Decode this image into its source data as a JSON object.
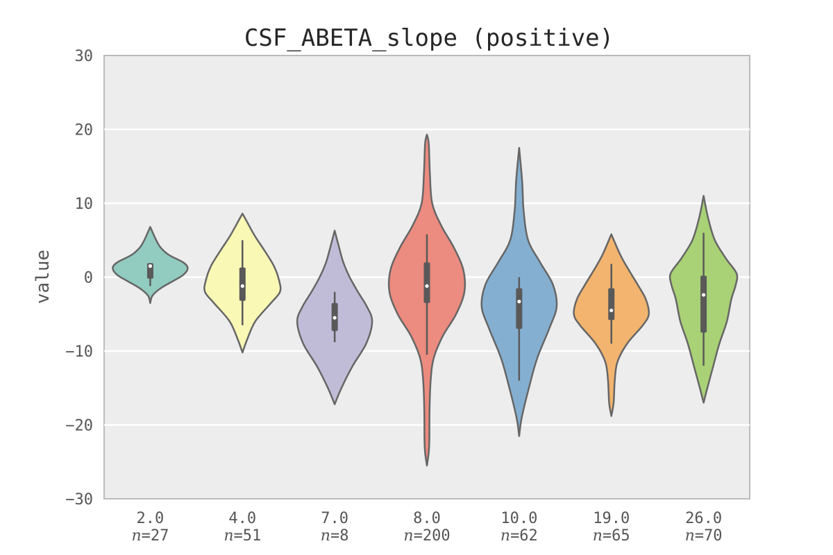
{
  "chart_data": {
    "type": "violin",
    "title": "CSF_ABETA_slope (positive)",
    "ylabel": "value",
    "xlabel": "",
    "ylim": [
      -30,
      30
    ],
    "yticks": [
      -30,
      -20,
      -10,
      0,
      10,
      20,
      30
    ],
    "ytick_labels": [
      "−30",
      "−20",
      "−10",
      "0",
      "10",
      "20",
      "30"
    ],
    "grid": true,
    "n_prefix": "n",
    "colors": {
      "background": "#ededed",
      "grid": "#ffffff",
      "outline": "#666666",
      "box": "#595959",
      "median": "#ffffff"
    },
    "groups": [
      {
        "category": "2.0",
        "n_label": "=27",
        "color": "#92cbc0",
        "min": -3.5,
        "max": 6.8,
        "q1": -0.2,
        "median": 1.5,
        "q3": 1.9,
        "whisker_low": -1.2,
        "whisker_high": 1.9,
        "profile": [
          [
            -3.5,
            0.0
          ],
          [
            -2.5,
            0.06
          ],
          [
            -1.5,
            0.28
          ],
          [
            -0.5,
            0.62
          ],
          [
            0.3,
            0.88
          ],
          [
            1.2,
            1.0
          ],
          [
            2.0,
            0.88
          ],
          [
            3.0,
            0.5
          ],
          [
            4.0,
            0.28
          ],
          [
            5.0,
            0.16
          ],
          [
            6.0,
            0.07
          ],
          [
            6.8,
            0.0
          ]
        ]
      },
      {
        "category": "4.0",
        "n_label": "=51",
        "color": "#f9f8b5",
        "min": -10.2,
        "max": 8.6,
        "q1": -3.2,
        "median": -1.2,
        "q3": 1.3,
        "whisker_low": -6.5,
        "whisker_high": 5.0,
        "profile": [
          [
            -10.2,
            0.0
          ],
          [
            -8.5,
            0.12
          ],
          [
            -6.0,
            0.34
          ],
          [
            -3.5,
            0.76
          ],
          [
            -2.0,
            1.0
          ],
          [
            -0.5,
            0.98
          ],
          [
            1.5,
            0.84
          ],
          [
            3.5,
            0.6
          ],
          [
            5.5,
            0.34
          ],
          [
            7.5,
            0.12
          ],
          [
            8.6,
            0.0
          ]
        ]
      },
      {
        "category": "7.0",
        "n_label": "=8",
        "color": "#c0bcd8",
        "min": -17.2,
        "max": 6.3,
        "q1": -7.3,
        "median": -5.5,
        "q3": -3.5,
        "whisker_low": -8.8,
        "whisker_high": -2.0,
        "profile": [
          [
            -17.2,
            0.0
          ],
          [
            -15.0,
            0.18
          ],
          [
            -12.0,
            0.48
          ],
          [
            -9.0,
            0.84
          ],
          [
            -6.0,
            1.0
          ],
          [
            -4.0,
            0.86
          ],
          [
            -2.0,
            0.62
          ],
          [
            0.0,
            0.4
          ],
          [
            2.0,
            0.23
          ],
          [
            4.0,
            0.12
          ],
          [
            6.3,
            0.0
          ]
        ]
      },
      {
        "category": "8.0",
        "n_label": "=200",
        "color": "#ec8b7f",
        "min": -25.5,
        "max": 19.3,
        "q1": -3.5,
        "median": -1.2,
        "q3": 2.0,
        "whisker_low": -10.5,
        "whisker_high": 5.8,
        "profile": [
          [
            -25.5,
            0.0
          ],
          [
            -23.0,
            0.06
          ],
          [
            -18.0,
            0.07
          ],
          [
            -14.0,
            0.1
          ],
          [
            -11.0,
            0.18
          ],
          [
            -8.0,
            0.42
          ],
          [
            -5.0,
            0.78
          ],
          [
            -2.0,
            1.0
          ],
          [
            1.0,
            0.97
          ],
          [
            4.0,
            0.72
          ],
          [
            7.0,
            0.38
          ],
          [
            10.0,
            0.14
          ],
          [
            14.0,
            0.08
          ],
          [
            18.0,
            0.05
          ],
          [
            19.3,
            0.0
          ]
        ]
      },
      {
        "category": "10.0",
        "n_label": "=62",
        "color": "#84afd1",
        "min": -21.5,
        "max": 17.5,
        "q1": -7.0,
        "median": -3.3,
        "q3": -1.5,
        "whisker_low": -14.0,
        "whisker_high": 0.0,
        "profile": [
          [
            -21.5,
            0.0
          ],
          [
            -19.0,
            0.07
          ],
          [
            -15.0,
            0.26
          ],
          [
            -11.0,
            0.48
          ],
          [
            -7.0,
            0.8
          ],
          [
            -4.0,
            1.0
          ],
          [
            -1.0,
            0.9
          ],
          [
            2.0,
            0.56
          ],
          [
            5.0,
            0.24
          ],
          [
            9.0,
            0.12
          ],
          [
            13.0,
            0.08
          ],
          [
            17.5,
            0.0
          ]
        ]
      },
      {
        "category": "19.0",
        "n_label": "=65",
        "color": "#f2b46e",
        "min": -18.8,
        "max": 5.8,
        "q1": -5.8,
        "median": -4.5,
        "q3": -1.5,
        "whisker_low": -9.0,
        "whisker_high": 1.8,
        "profile": [
          [
            -18.8,
            0.0
          ],
          [
            -17.0,
            0.06
          ],
          [
            -14.0,
            0.09
          ],
          [
            -11.5,
            0.16
          ],
          [
            -9.0,
            0.42
          ],
          [
            -6.5,
            0.84
          ],
          [
            -5.0,
            1.0
          ],
          [
            -3.0,
            0.92
          ],
          [
            -1.0,
            0.7
          ],
          [
            1.0,
            0.46
          ],
          [
            3.0,
            0.24
          ],
          [
            5.8,
            0.0
          ]
        ]
      },
      {
        "category": "26.0",
        "n_label": "=70",
        "color": "#a9d175",
        "min": -17.0,
        "max": 11.0,
        "q1": -7.5,
        "median": -2.4,
        "q3": 0.2,
        "whisker_low": -12.0,
        "whisker_high": 6.0,
        "profile": [
          [
            -17.0,
            0.0
          ],
          [
            -15.0,
            0.1
          ],
          [
            -12.0,
            0.26
          ],
          [
            -9.0,
            0.42
          ],
          [
            -6.0,
            0.62
          ],
          [
            -3.0,
            0.74
          ],
          [
            -1.0,
            0.86
          ],
          [
            0.5,
            0.88
          ],
          [
            2.5,
            0.6
          ],
          [
            5.0,
            0.3
          ],
          [
            8.0,
            0.12
          ],
          [
            11.0,
            0.0
          ]
        ]
      }
    ]
  }
}
